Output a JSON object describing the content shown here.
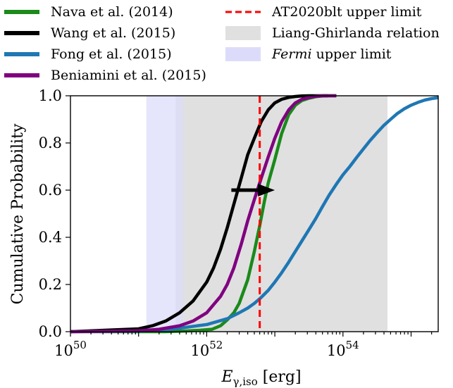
{
  "chart_data": {
    "type": "line",
    "title": "",
    "xlabel": "E_γ,iso [erg]",
    "xlabel_main": "E",
    "xlabel_sub": "γ,iso",
    "xlabel_unit": " [erg]",
    "ylabel": "Cumulative Probability",
    "x_scale": "log",
    "xlim": [
      1e+50,
      2.5e+55
    ],
    "ylim": [
      0,
      1.0
    ],
    "x_ticks": [
      {
        "value": 1e+50,
        "label_base": "10",
        "label_exp": "50"
      },
      {
        "value": 1e+52,
        "label_base": "10",
        "label_exp": "52"
      },
      {
        "value": 1e+54,
        "label_base": "10",
        "label_exp": "54"
      }
    ],
    "y_ticks": [
      {
        "value": 0.0,
        "label": "0.0"
      },
      {
        "value": 0.2,
        "label": "0.2"
      },
      {
        "value": 0.4,
        "label": "0.4"
      },
      {
        "value": 0.6,
        "label": "0.6"
      },
      {
        "value": 0.8,
        "label": "0.8"
      },
      {
        "value": 1.0,
        "label": "1.0"
      }
    ],
    "grid": false,
    "legend_position": "top, outside plot",
    "series": [
      {
        "name": "Nava et al. (2014)",
        "color": "#1a8a1a",
        "x": [
          1e+50,
          2.5e+51,
          5e+51,
          8e+51,
          1.2e+52,
          1.6e+52,
          2e+52,
          2.5e+52,
          3e+52,
          4e+52,
          5e+52,
          6e+52,
          7e+52,
          8e+52,
          1e+53,
          1.26e+53,
          1.6e+53,
          2e+53,
          2.5e+53,
          3.2e+53,
          4e+53,
          5e+53,
          6.3e+53,
          8e+53
        ],
        "y": [
          0.0,
          0.0,
          0.003,
          0.006,
          0.01,
          0.025,
          0.05,
          0.08,
          0.12,
          0.22,
          0.34,
          0.45,
          0.55,
          0.63,
          0.73,
          0.84,
          0.92,
          0.96,
          0.98,
          0.99,
          0.996,
          0.999,
          1.0,
          1.0
        ]
      },
      {
        "name": "Wang et al. (2015)",
        "color": "#000000",
        "x": [
          1e+50,
          1e+51,
          1.6e+51,
          2.5e+51,
          4e+51,
          6.3e+51,
          1e+52,
          1.26e+52,
          1.6e+52,
          2e+52,
          2.5e+52,
          3.2e+52,
          4e+52,
          5e+52,
          6.3e+52,
          8e+52,
          1e+53,
          1.26e+53,
          1.6e+53,
          2e+53,
          2.5e+53,
          3.2e+53,
          4e+53,
          5e+53,
          6e+53
        ],
        "y": [
          0.0,
          0.012,
          0.025,
          0.045,
          0.08,
          0.13,
          0.21,
          0.27,
          0.35,
          0.44,
          0.54,
          0.65,
          0.75,
          0.82,
          0.89,
          0.94,
          0.97,
          0.985,
          0.993,
          0.997,
          0.999,
          1.0,
          1.0,
          1.0,
          1.0
        ]
      },
      {
        "name": "Fong et al. (2015)",
        "color": "#1f77b4",
        "x": [
          1e+50,
          1e+51,
          3e+51,
          1e+52,
          2e+52,
          3e+52,
          4e+52,
          5e+52,
          6.3e+52,
          8e+52,
          1e+53,
          1.26e+53,
          1.6e+53,
          2e+53,
          2.5e+53,
          3.2e+53,
          4e+53,
          5e+53,
          6.3e+53,
          8e+53,
          1e+54,
          1.26e+54,
          1.6e+54,
          2e+54,
          2.5e+54,
          3.2e+54,
          4e+54,
          5e+54,
          6.3e+54,
          8e+54,
          1e+55,
          1.26e+55,
          1.6e+55,
          2e+55,
          2.5e+55
        ],
        "y": [
          0.0,
          0.002,
          0.01,
          0.03,
          0.055,
          0.08,
          0.1,
          0.12,
          0.145,
          0.175,
          0.21,
          0.25,
          0.295,
          0.34,
          0.385,
          0.435,
          0.48,
          0.53,
          0.58,
          0.625,
          0.665,
          0.7,
          0.74,
          0.775,
          0.81,
          0.845,
          0.875,
          0.9,
          0.925,
          0.945,
          0.96,
          0.972,
          0.982,
          0.988,
          0.992
        ]
      },
      {
        "name": "Beniamini et al. (2015)",
        "color": "#800080",
        "x": [
          1e+50,
          1e+51,
          2e+51,
          4e+51,
          6.3e+51,
          1e+52,
          1.6e+52,
          2e+52,
          2.5e+52,
          3.2e+52,
          4e+52,
          5e+52,
          6.3e+52,
          8e+52,
          1e+53,
          1.26e+53,
          1.6e+53,
          2e+53,
          2.5e+53,
          3.2e+53,
          4e+53,
          5e+53,
          6.3e+53,
          8e+53
        ],
        "y": [
          0.0,
          0.004,
          0.01,
          0.025,
          0.045,
          0.08,
          0.15,
          0.2,
          0.27,
          0.37,
          0.47,
          0.56,
          0.65,
          0.74,
          0.82,
          0.89,
          0.94,
          0.97,
          0.985,
          0.993,
          0.998,
          1.0,
          1.0,
          1.0
        ]
      }
    ],
    "upper_limit_line": {
      "name": "AT2020blt upper limit",
      "x": 6e+52,
      "color": "#ff0000"
    },
    "shaded_regions": [
      {
        "name": "Liang-Ghirlanda relation",
        "x_range": [
          3.5e+51,
          4.5e+54
        ],
        "color": "#e0e0e0"
      },
      {
        "name_prefix": "",
        "name_italic": "Fermi",
        "name_suffix": " upper limit",
        "x_range": [
          1.3e+51,
          4.5e+51
        ],
        "color": "#dcdcfa"
      }
    ],
    "arrow": {
      "x_start": 2.3e+52,
      "x_end": 1e+53,
      "y": 0.6,
      "color": "#000000"
    }
  }
}
